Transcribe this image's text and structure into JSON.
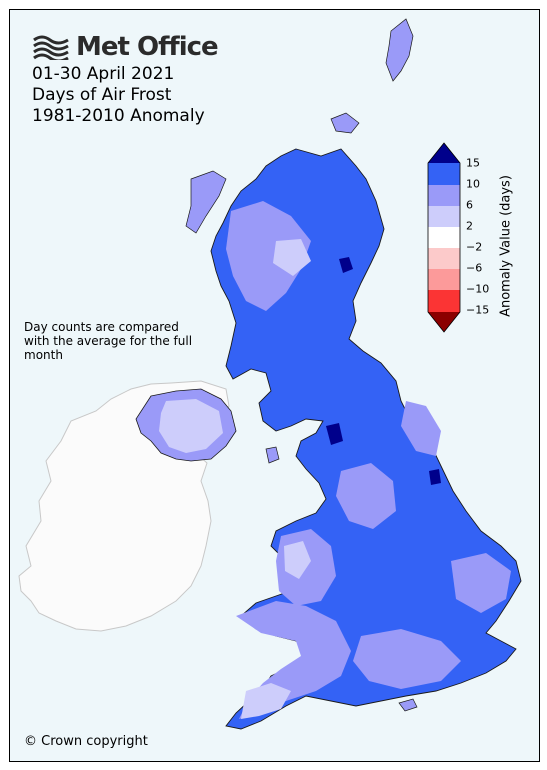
{
  "brand": {
    "name": "Met Office",
    "logo_icon": "met-office-wave-logo-icon"
  },
  "title_lines": [
    "01-30 April 2021",
    "Days of Air Frost",
    "1981-2010 Anomaly"
  ],
  "note": "Day counts are compared with the average for the full month",
  "copyright": "© Crown copyright",
  "legend": {
    "title": "Anomaly Value (days)",
    "ticks": [
      "15",
      "10",
      "6",
      "2",
      "−2",
      "−6",
      "−10",
      "−15"
    ],
    "colors": {
      "over": "#00008b",
      "b10_15": "#3462f5",
      "b6_10": "#9a9af8",
      "b2_6": "#cdcdfb",
      "b_2_2": "#ffffff",
      "b_6_2": "#fccaca",
      "b_10_6": "#fc9a9a",
      "b_15_10": "#fb3434",
      "under": "#8b0000"
    }
  },
  "map_colors": {
    "sea": "#eef7fa",
    "ireland_fill": "#fbfbfb",
    "ireland_border": "#c8c8c8",
    "coast": "#1a1a1a"
  }
}
